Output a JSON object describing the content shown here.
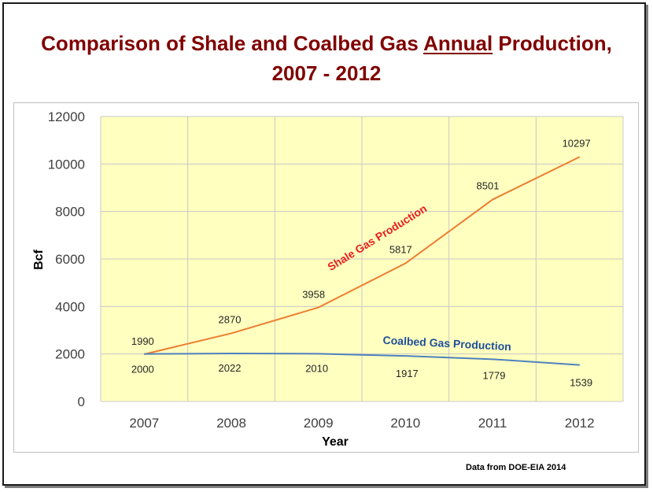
{
  "title": {
    "part1": "Comparison of Shale and Coalbed Gas ",
    "part2": "Annual",
    "part3": " Production,",
    "line2": "2007 - 2012"
  },
  "source_note": "Data from DOE-EIA 2014",
  "chart_data": {
    "type": "line",
    "x": [
      "2007",
      "2008",
      "2009",
      "2010",
      "2011",
      "2012"
    ],
    "xlabel": "Year",
    "ylabel": "Bcf",
    "ylim": [
      0,
      12000
    ],
    "yticks": [
      0,
      2000,
      4000,
      6000,
      8000,
      10000,
      12000
    ],
    "grid": true,
    "legend": "none",
    "series": [
      {
        "name": "Shale Gas Production",
        "color": "#ED7D31",
        "label_color": "#E81E1E",
        "values": [
          1990,
          2870,
          3958,
          5817,
          8501,
          10297
        ]
      },
      {
        "name": "Coalbed Gas Production",
        "color": "#4F81BD",
        "label_color": "#1F4E99",
        "values": [
          2000,
          2022,
          2010,
          1917,
          1779,
          1539
        ]
      }
    ],
    "plot_background": "#FFFFC0"
  }
}
